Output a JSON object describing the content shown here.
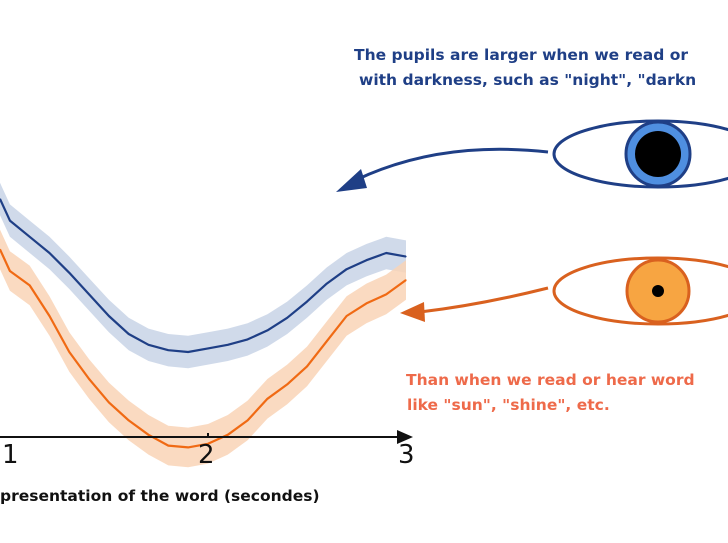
{
  "annotations": {
    "dark_line1": "The pupils are larger when we read or",
    "dark_line2": "with darkness, such as \"night\", \"darkn",
    "light_line1": "Than when we read or hear word",
    "light_line2": "like \"sun\", \"shine\", etc."
  },
  "colors": {
    "dark_series": "#1f3f86",
    "dark_band": "#c8d4e6",
    "light_series": "#f06a14",
    "light_band": "#f9d4b6",
    "dark_annotation": "#1f3f86",
    "light_annotation": "#ee6a4a",
    "dark_eye_iris": "#4f8fe0",
    "light_eye_iris": "#f7a542"
  },
  "icons": [
    "eye-dilated-pupil-icon",
    "eye-constricted-pupil-icon",
    "arrow-icon"
  ],
  "chart_data": {
    "type": "line",
    "xlabel": "presentation of the word (secondes)",
    "ylabel": "",
    "title": "",
    "xlim": [
      0.95,
      3
    ],
    "ylim": [
      -1,
      1
    ],
    "x_ticks": [
      "1",
      "2",
      "3"
    ],
    "grid": false,
    "series": [
      {
        "key": "dark",
        "x": [
          0.95,
          1.0,
          1.1,
          1.2,
          1.3,
          1.4,
          1.5,
          1.6,
          1.7,
          1.8,
          1.9,
          2.0,
          2.1,
          2.2,
          2.3,
          2.4,
          2.5,
          2.6,
          2.7,
          2.8,
          2.9,
          3.0
        ],
        "values": [
          0.45,
          0.33,
          0.24,
          0.15,
          0.04,
          -0.08,
          -0.2,
          -0.3,
          -0.36,
          -0.39,
          -0.4,
          -0.38,
          -0.36,
          -0.33,
          -0.28,
          -0.21,
          -0.12,
          -0.02,
          0.06,
          0.11,
          0.15,
          0.13
        ],
        "band": 0.09
      },
      {
        "key": "light",
        "x": [
          0.95,
          1.0,
          1.1,
          1.2,
          1.3,
          1.4,
          1.5,
          1.6,
          1.7,
          1.8,
          1.9,
          2.0,
          2.1,
          2.2,
          2.3,
          2.4,
          2.5,
          2.6,
          2.7,
          2.8,
          2.9,
          3.0
        ],
        "values": [
          0.17,
          0.05,
          -0.03,
          -0.2,
          -0.4,
          -0.55,
          -0.68,
          -0.78,
          -0.86,
          -0.92,
          -0.93,
          -0.91,
          -0.86,
          -0.78,
          -0.66,
          -0.58,
          -0.48,
          -0.34,
          -0.2,
          -0.13,
          -0.08,
          0.0
        ],
        "band": 0.11
      }
    ]
  }
}
